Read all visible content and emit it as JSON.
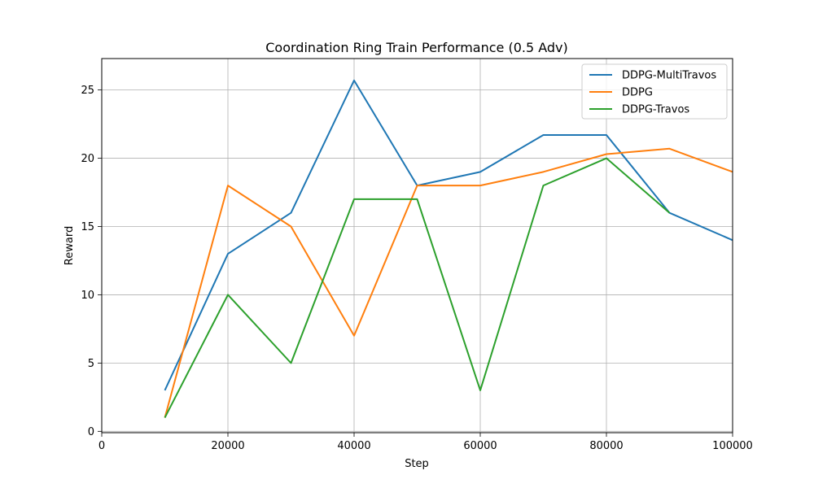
{
  "chart_data": {
    "type": "line",
    "title": "Coordination Ring Train Performance (0.5 Adv)",
    "xlabel": "Step",
    "ylabel": "Reward",
    "xlim": [
      0,
      100000
    ],
    "ylim": [
      -0.1,
      27.3
    ],
    "xticks": [
      0,
      20000,
      40000,
      60000,
      80000,
      100000
    ],
    "yticks": [
      0,
      5,
      10,
      15,
      20,
      25
    ],
    "grid": true,
    "legend_position": "top-right",
    "x": [
      10000,
      20000,
      30000,
      40000,
      50000,
      60000,
      70000,
      80000,
      90000,
      100000
    ],
    "series": [
      {
        "name": "DDPG-MultiTravos",
        "color": "#1f77b4",
        "values": [
          3,
          13,
          16,
          25.7,
          18,
          19,
          21.7,
          21.7,
          16,
          14
        ]
      },
      {
        "name": "DDPG",
        "color": "#ff7f0e",
        "values": [
          1,
          18,
          15,
          7,
          18,
          18,
          19,
          20.3,
          20.7,
          19
        ]
      },
      {
        "name": "DDPG-Travos",
        "color": "#2ca02c",
        "values": [
          1,
          10,
          5,
          17,
          17,
          3,
          18,
          20,
          16,
          null
        ]
      }
    ]
  }
}
